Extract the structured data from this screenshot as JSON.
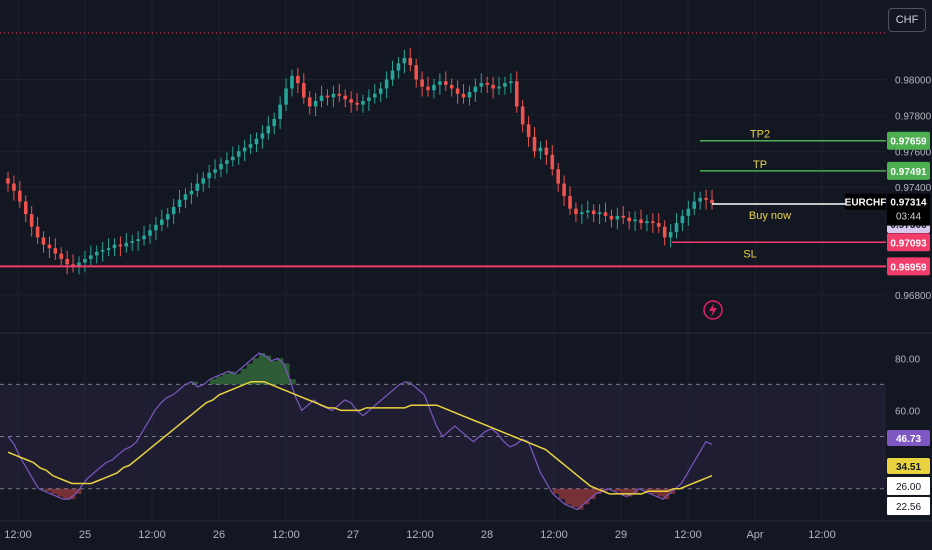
{
  "currency_button": "CHF",
  "colors": {
    "background": "#131722",
    "up_candle": "#26a69a",
    "down_candle": "#ef5350",
    "take_profit": "#4caf50",
    "stop_loss": "#f23d6b",
    "buy_text": "#e8d44d",
    "rsi_line": "#7e57c2",
    "rsi_ma": "#e9d43f",
    "grid": "#1e222d"
  },
  "chart_data": [
    {
      "type": "candlestick",
      "symbol": "EURCHF",
      "price_axis": {
        "ticks": [
          "0.98000",
          "0.97800",
          "0.97600",
          "0.97400",
          "0.96800"
        ],
        "range": [
          0.9666,
          0.9822
        ]
      },
      "current_price": {
        "label": "EURCHF",
        "value": "0.97314",
        "countdown": "03:44",
        "value_num": 0.97314
      },
      "levels": [
        {
          "name": "TP2",
          "value": "0.97659",
          "value_num": 0.97659,
          "kind": "take_profit"
        },
        {
          "name": "TP",
          "value": "0.97491",
          "value_num": 0.97491,
          "kind": "take_profit"
        },
        {
          "name": "Buy now",
          "value": "0.97306",
          "value_num": 0.97306,
          "kind": "entry"
        },
        {
          "name": "SL",
          "value": "0.97093",
          "value_num": 0.97093,
          "kind": "stop_loss"
        },
        {
          "name": "",
          "value": "0.96959",
          "value_num": 0.96959,
          "kind": "support"
        }
      ],
      "time_axis": [
        "12:00",
        "25",
        "12:00",
        "26",
        "12:00",
        "27",
        "12:00",
        "28",
        "12:00",
        "29",
        "12:00",
        "Apr",
        "12:00"
      ],
      "closes": [
        0.9742,
        0.9738,
        0.9732,
        0.9725,
        0.9718,
        0.9712,
        0.9708,
        0.9706,
        0.9703,
        0.97,
        0.9697,
        0.9696,
        0.9698,
        0.97,
        0.9702,
        0.9704,
        0.9705,
        0.9706,
        0.9708,
        0.9707,
        0.9709,
        0.971,
        0.9711,
        0.9713,
        0.9716,
        0.9719,
        0.9722,
        0.9725,
        0.9729,
        0.9733,
        0.9736,
        0.9738,
        0.9742,
        0.9745,
        0.9748,
        0.975,
        0.9753,
        0.9755,
        0.9757,
        0.976,
        0.9762,
        0.9764,
        0.9767,
        0.977,
        0.9774,
        0.9778,
        0.9786,
        0.9795,
        0.9802,
        0.9798,
        0.979,
        0.9785,
        0.9788,
        0.9791,
        0.979,
        0.9792,
        0.9791,
        0.9789,
        0.9787,
        0.9786,
        0.9788,
        0.979,
        0.9792,
        0.9795,
        0.98,
        0.9805,
        0.9809,
        0.9812,
        0.9808,
        0.98,
        0.9796,
        0.9794,
        0.9797,
        0.9799,
        0.9797,
        0.9795,
        0.9792,
        0.979,
        0.9793,
        0.9796,
        0.9798,
        0.9797,
        0.9795,
        0.9796,
        0.9798,
        0.9799,
        0.9785,
        0.9775,
        0.9768,
        0.976,
        0.9762,
        0.9758,
        0.975,
        0.9742,
        0.9735,
        0.9728,
        0.9725,
        0.9726,
        0.9727,
        0.9725,
        0.9726,
        0.9724,
        0.9722,
        0.9724,
        0.9723,
        0.9721,
        0.9722,
        0.972,
        0.9721,
        0.972,
        0.9718,
        0.9712,
        0.9715,
        0.972,
        0.9724,
        0.9728,
        0.9732,
        0.9734,
        0.9733,
        0.9731
      ]
    },
    {
      "type": "line",
      "name": "RSI",
      "y_ticks": [
        "80.00",
        "60.00",
        "40.00"
      ],
      "ylim": [
        18,
        87
      ],
      "bands": [
        70,
        50,
        30
      ],
      "value_labels": [
        {
          "value": "46.73",
          "kind": "rsi"
        },
        {
          "value": "34.51",
          "kind": "ma"
        },
        {
          "value": "26.00",
          "kind": "neutral"
        },
        {
          "value": "22.56",
          "kind": "neutral"
        }
      ],
      "rsi": [
        50,
        47,
        42,
        38,
        34,
        30,
        29,
        28,
        27,
        26,
        26,
        28,
        31,
        34,
        36,
        38,
        40,
        41,
        43,
        45,
        46,
        48,
        52,
        56,
        60,
        63,
        65,
        66,
        68,
        70,
        71,
        69,
        70,
        72,
        73,
        74,
        75,
        74,
        76,
        78,
        80,
        82,
        81,
        79,
        80,
        78,
        72,
        65,
        60,
        62,
        64,
        62,
        61,
        60,
        62,
        64,
        63,
        60,
        58,
        60,
        62,
        64,
        66,
        68,
        70,
        71,
        70,
        68,
        66,
        60,
        54,
        50,
        52,
        54,
        52,
        50,
        48,
        50,
        52,
        53,
        51,
        48,
        46,
        47,
        49,
        48,
        42,
        36,
        32,
        28,
        26,
        24,
        23,
        22,
        24,
        26,
        28,
        29,
        30,
        29,
        28,
        27,
        28,
        30,
        29,
        28,
        27,
        26,
        28,
        30,
        32,
        36,
        40,
        44,
        48,
        47
      ],
      "rsi_ma": [
        44,
        43,
        42,
        41,
        40,
        38,
        37,
        35,
        34,
        33,
        32,
        32,
        32,
        32,
        33,
        34,
        35,
        36,
        38,
        39,
        41,
        43,
        45,
        47,
        49,
        51,
        53,
        55,
        57,
        59,
        61,
        63,
        64,
        66,
        67,
        68,
        69,
        70,
        71,
        71,
        71,
        70,
        69,
        68,
        67,
        66,
        65,
        64,
        63,
        62,
        61,
        61,
        60,
        60,
        60,
        60,
        61,
        61,
        61,
        61,
        61,
        61,
        61,
        62,
        62,
        62,
        62,
        62,
        61,
        60,
        59,
        58,
        57,
        56,
        55,
        54,
        53,
        52,
        51,
        50,
        49,
        48,
        47,
        46,
        45,
        43,
        41,
        39,
        37,
        35,
        33,
        31,
        30,
        29,
        28,
        28,
        28,
        28,
        28,
        28,
        29,
        29,
        29,
        29,
        30,
        30,
        31,
        32,
        33,
        34,
        35
      ]
    }
  ]
}
